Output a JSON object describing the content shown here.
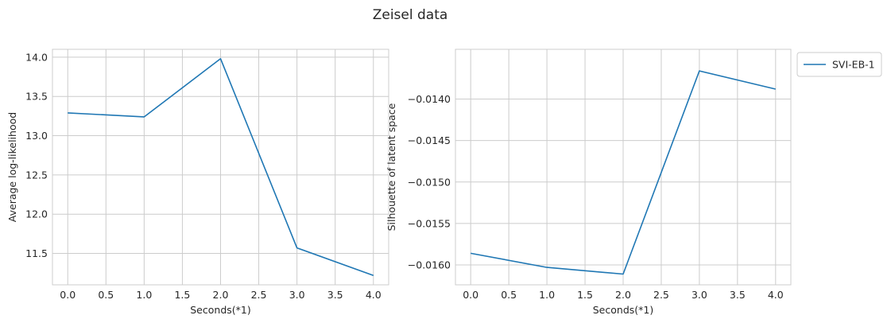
{
  "title": "Zeisel data",
  "chart_data": [
    {
      "type": "line",
      "xlabel": "Seconds(*1)",
      "ylabel": "Average log-likelihood",
      "xlim": [
        -0.2,
        4.2
      ],
      "ylim": [
        11.1,
        14.1
      ],
      "xticks": [
        0.0,
        0.5,
        1.0,
        1.5,
        2.0,
        2.5,
        3.0,
        3.5,
        4.0
      ],
      "xtick_labels": [
        "0.0",
        "0.5",
        "1.0",
        "1.5",
        "2.0",
        "2.5",
        "3.0",
        "3.5",
        "4.0"
      ],
      "yticks": [
        11.5,
        12.0,
        12.5,
        13.0,
        13.5,
        14.0
      ],
      "ytick_labels": [
        "11.5",
        "12.0",
        "12.5",
        "13.0",
        "13.5",
        "14.0"
      ],
      "grid": true,
      "series": [
        {
          "x": [
            0,
            1,
            2,
            3,
            4
          ],
          "values": [
            13.29,
            13.24,
            13.98,
            11.57,
            11.22
          ],
          "color": "#1f77b4"
        }
      ]
    },
    {
      "type": "line",
      "xlabel": "Seconds(*1)",
      "ylabel": "Silhouette of latent space",
      "xlim": [
        -0.2,
        4.2
      ],
      "ylim": [
        -0.01624,
        -0.0134
      ],
      "xticks": [
        0.0,
        0.5,
        1.0,
        1.5,
        2.0,
        2.5,
        3.0,
        3.5,
        4.0
      ],
      "xtick_labels": [
        "0.0",
        "0.5",
        "1.0",
        "1.5",
        "2.0",
        "2.5",
        "3.0",
        "3.5",
        "4.0"
      ],
      "yticks": [
        -0.016,
        -0.0155,
        -0.015,
        -0.0145,
        -0.014
      ],
      "ytick_labels": [
        "−0.0160",
        "−0.0155",
        "−0.0150",
        "−0.0145",
        "−0.0140"
      ],
      "grid": true,
      "legend": "outside-right-top",
      "series": [
        {
          "name": "SVI-EB-1",
          "x": [
            0,
            1,
            2,
            3,
            4
          ],
          "values": [
            -0.01586,
            -0.01603,
            -0.01611,
            -0.01366,
            -0.01388
          ],
          "color": "#1f77b4"
        }
      ]
    }
  ]
}
